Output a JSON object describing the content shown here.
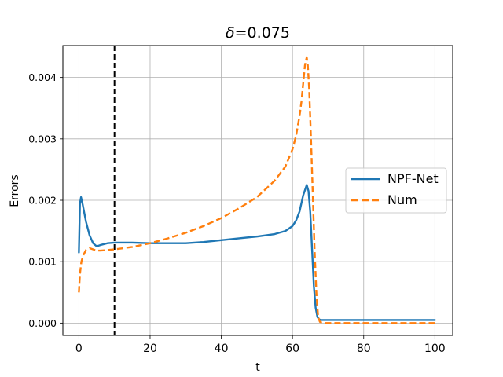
{
  "chart_data": {
    "type": "line",
    "title_prefix": "δ",
    "title_value": "=0.075",
    "xlabel": "t",
    "ylabel": "Errors",
    "xlim": [
      -4.5,
      105
    ],
    "ylim": [
      -0.0002,
      0.00452
    ],
    "xticks": [
      0,
      20,
      40,
      60,
      80,
      100
    ],
    "xtick_labels": [
      "0",
      "20",
      "40",
      "60",
      "80",
      "100"
    ],
    "yticks": [
      0.0,
      0.001,
      0.002,
      0.003,
      0.004
    ],
    "ytick_labels": [
      "0.000",
      "0.001",
      "0.002",
      "0.003",
      "0.004"
    ],
    "grid": true,
    "legend_position": "center-right",
    "vline": {
      "x": 10,
      "style": "dashed",
      "color": "#000000"
    },
    "series": [
      {
        "name": "NPF-Net",
        "color": "#1f77b4",
        "style": "solid",
        "x": [
          0,
          0.3,
          0.6,
          1,
          2,
          3,
          4,
          5,
          6,
          8,
          10,
          15,
          20,
          25,
          30,
          35,
          40,
          45,
          50,
          55,
          58,
          60,
          61,
          62,
          63,
          64,
          64.5,
          65,
          65.5,
          66,
          66.5,
          67,
          67.5,
          68,
          70,
          80,
          90,
          100
        ],
        "y": [
          0.00115,
          0.00195,
          0.00205,
          0.00195,
          0.00165,
          0.00143,
          0.0013,
          0.00125,
          0.00127,
          0.0013,
          0.00131,
          0.00131,
          0.0013,
          0.0013,
          0.0013,
          0.00132,
          0.00135,
          0.00138,
          0.00141,
          0.00145,
          0.0015,
          0.00158,
          0.00167,
          0.00182,
          0.00208,
          0.00225,
          0.00215,
          0.0018,
          0.0012,
          0.0006,
          0.00025,
          0.0001,
          6e-05,
          5e-05,
          5e-05,
          5e-05,
          5e-05,
          5e-05
        ]
      },
      {
        "name": "Num",
        "color": "#ff7f0e",
        "style": "dashed",
        "x": [
          0,
          0.3,
          0.7,
          1.2,
          2,
          3,
          4,
          5,
          6,
          8,
          10,
          15,
          20,
          25,
          30,
          35,
          40,
          45,
          50,
          55,
          58,
          60,
          61,
          62,
          62.5,
          63,
          63.5,
          64,
          64.3,
          64.7,
          65.2,
          65.7,
          66.2,
          66.7,
          67.2,
          67.7,
          68.5,
          70,
          80,
          90,
          100
        ],
        "y": [
          0.0005,
          0.0008,
          0.001,
          0.0011,
          0.00119,
          0.00122,
          0.0012,
          0.00118,
          0.00118,
          0.00119,
          0.0012,
          0.00124,
          0.0013,
          0.00138,
          0.00147,
          0.00158,
          0.00171,
          0.00187,
          0.00205,
          0.00232,
          0.00255,
          0.00283,
          0.00305,
          0.00338,
          0.0036,
          0.0039,
          0.0042,
          0.00433,
          0.0042,
          0.0038,
          0.003,
          0.0021,
          0.0012,
          0.0005,
          0.0001,
          2e-05,
          0.0,
          0.0,
          0.0,
          0.0,
          0.0
        ]
      }
    ]
  }
}
